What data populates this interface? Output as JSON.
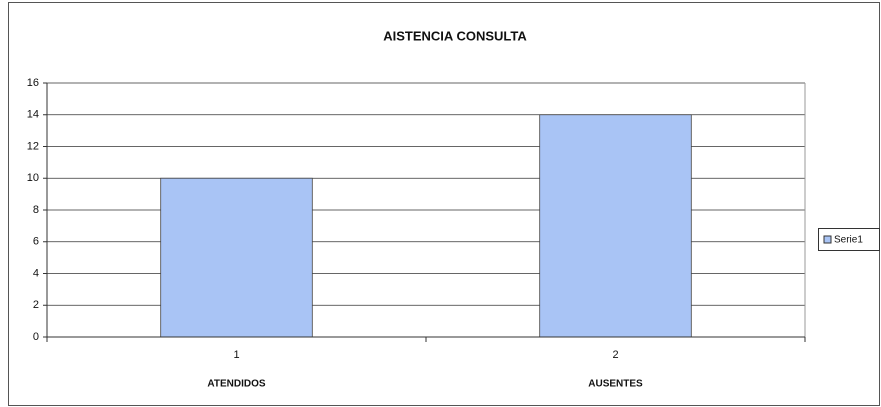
{
  "chart_data": {
    "type": "bar",
    "title": "AISTENCIA CONSULTA",
    "categories": [
      "1",
      "2"
    ],
    "category_groups": [
      "ATENDIDOS",
      "AUSENTES"
    ],
    "series": [
      {
        "name": "Serie1",
        "color": "#a9c4f5",
        "values": [
          10,
          14
        ]
      }
    ],
    "ylim": [
      0,
      16
    ],
    "yticks": [
      0,
      2,
      4,
      6,
      8,
      10,
      12,
      14,
      16
    ],
    "grid": true,
    "legend": "right"
  }
}
